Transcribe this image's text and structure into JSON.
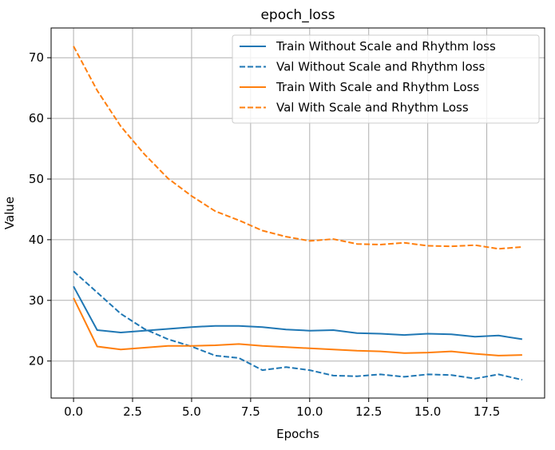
{
  "chart_data": {
    "type": "line",
    "title": "epoch_loss",
    "xlabel": "Epochs",
    "ylabel": "Value",
    "xlim": [
      -0.95,
      19.95
    ],
    "ylim": [
      13.9,
      74.9
    ],
    "xticks": [
      0.0,
      2.5,
      5.0,
      7.5,
      10.0,
      12.5,
      15.0,
      17.5
    ],
    "xtick_labels": [
      "0.0",
      "2.5",
      "5.0",
      "7.5",
      "10.0",
      "12.5",
      "15.0",
      "17.5"
    ],
    "yticks": [
      20,
      30,
      40,
      50,
      60,
      70
    ],
    "ytick_labels": [
      "20",
      "30",
      "40",
      "50",
      "60",
      "70"
    ],
    "grid": true,
    "legend_position": "top-right",
    "x": [
      0,
      1,
      2,
      3,
      4,
      5,
      6,
      7,
      8,
      9,
      10,
      11,
      12,
      13,
      14,
      15,
      16,
      17,
      18,
      19
    ],
    "series": [
      {
        "name": "Train Without Scale and Rhythm loss",
        "color": "#1f77b4",
        "dash": "solid",
        "values": [
          32.3,
          25.1,
          24.7,
          25.0,
          25.3,
          25.6,
          25.8,
          25.8,
          25.6,
          25.2,
          25.0,
          25.1,
          24.6,
          24.5,
          24.3,
          24.5,
          24.4,
          24.0,
          24.2,
          23.6
        ]
      },
      {
        "name": "Val Without Scale and Rhythm loss",
        "color": "#1f77b4",
        "dash": "dashed",
        "values": [
          34.8,
          31.3,
          27.8,
          25.3,
          23.6,
          22.4,
          20.9,
          20.5,
          18.5,
          19.0,
          18.5,
          17.6,
          17.5,
          17.8,
          17.4,
          17.8,
          17.7,
          17.1,
          17.8,
          16.9
        ]
      },
      {
        "name": "Train With Scale and Rhythm Loss",
        "color": "#ff7f0e",
        "dash": "solid",
        "values": [
          30.4,
          22.4,
          21.9,
          22.2,
          22.5,
          22.5,
          22.6,
          22.8,
          22.5,
          22.3,
          22.1,
          21.9,
          21.7,
          21.6,
          21.3,
          21.4,
          21.6,
          21.2,
          20.9,
          21.0
        ]
      },
      {
        "name": "Val With Scale and Rhythm Loss",
        "color": "#ff7f0e",
        "dash": "dashed",
        "values": [
          71.9,
          64.6,
          58.7,
          54.1,
          50.1,
          47.2,
          44.7,
          43.2,
          41.5,
          40.5,
          39.8,
          40.1,
          39.3,
          39.2,
          39.5,
          39.0,
          38.9,
          39.1,
          38.5,
          38.8
        ]
      }
    ]
  }
}
